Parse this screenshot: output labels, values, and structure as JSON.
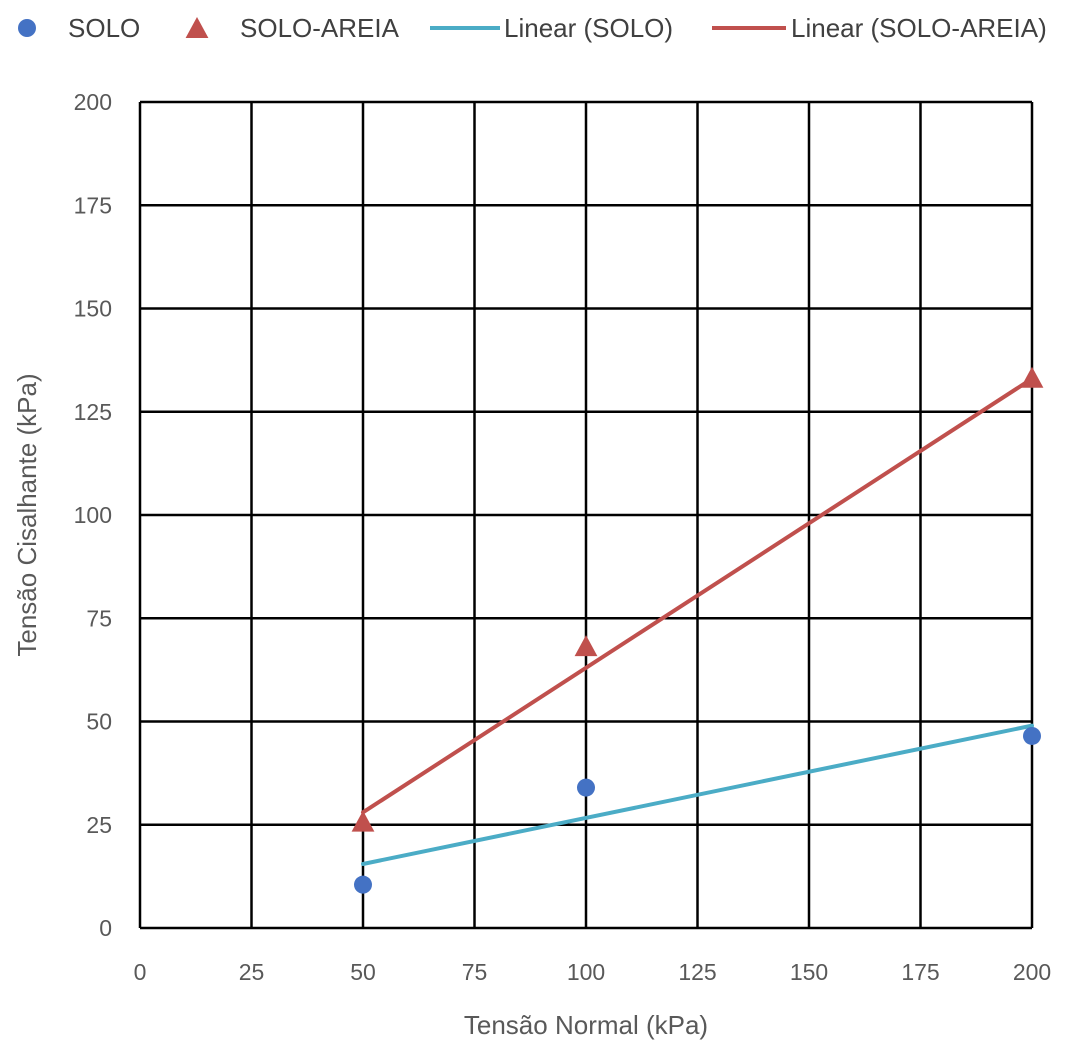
{
  "chart_data": {
    "type": "scatter",
    "title": "",
    "xlabel": "Tensão Normal (kPa)",
    "ylabel": "Tensão Cisalhante (kPa)",
    "xlim": [
      0,
      200
    ],
    "ylim": [
      0,
      200
    ],
    "xticks": [
      0,
      25,
      50,
      75,
      100,
      125,
      150,
      175,
      200
    ],
    "yticks": [
      0,
      25,
      50,
      75,
      100,
      125,
      150,
      175,
      200
    ],
    "xtick_labels": [
      "0",
      "25",
      "50",
      "75",
      "100",
      "125",
      "150",
      "175",
      "200"
    ],
    "ytick_labels": [
      "0",
      "25",
      "50",
      "75",
      "100",
      "125",
      "150",
      "175",
      "200"
    ],
    "grid": true,
    "legend_position": "top",
    "series": [
      {
        "name": "SOLO",
        "marker": "circle",
        "color": "#4472C4",
        "points": [
          {
            "x": 50,
            "y": 10.5
          },
          {
            "x": 100,
            "y": 34
          },
          {
            "x": 200,
            "y": 46.5
          }
        ]
      },
      {
        "name": "SOLO-AREIA",
        "marker": "triangle",
        "color": "#C0504D",
        "points": [
          {
            "x": 50,
            "y": 25.5
          },
          {
            "x": 100,
            "y": 68
          },
          {
            "x": 200,
            "y": 133
          }
        ]
      }
    ],
    "trendlines": [
      {
        "name": "Linear (SOLO)",
        "color": "#4BACC6",
        "x_range": [
          50,
          200
        ],
        "y_range": [
          15.5,
          49
        ]
      },
      {
        "name": "Linear (SOLO-AREIA)",
        "color": "#C0504D",
        "x_range": [
          50,
          200
        ],
        "y_range": [
          28,
          133
        ]
      }
    ]
  }
}
